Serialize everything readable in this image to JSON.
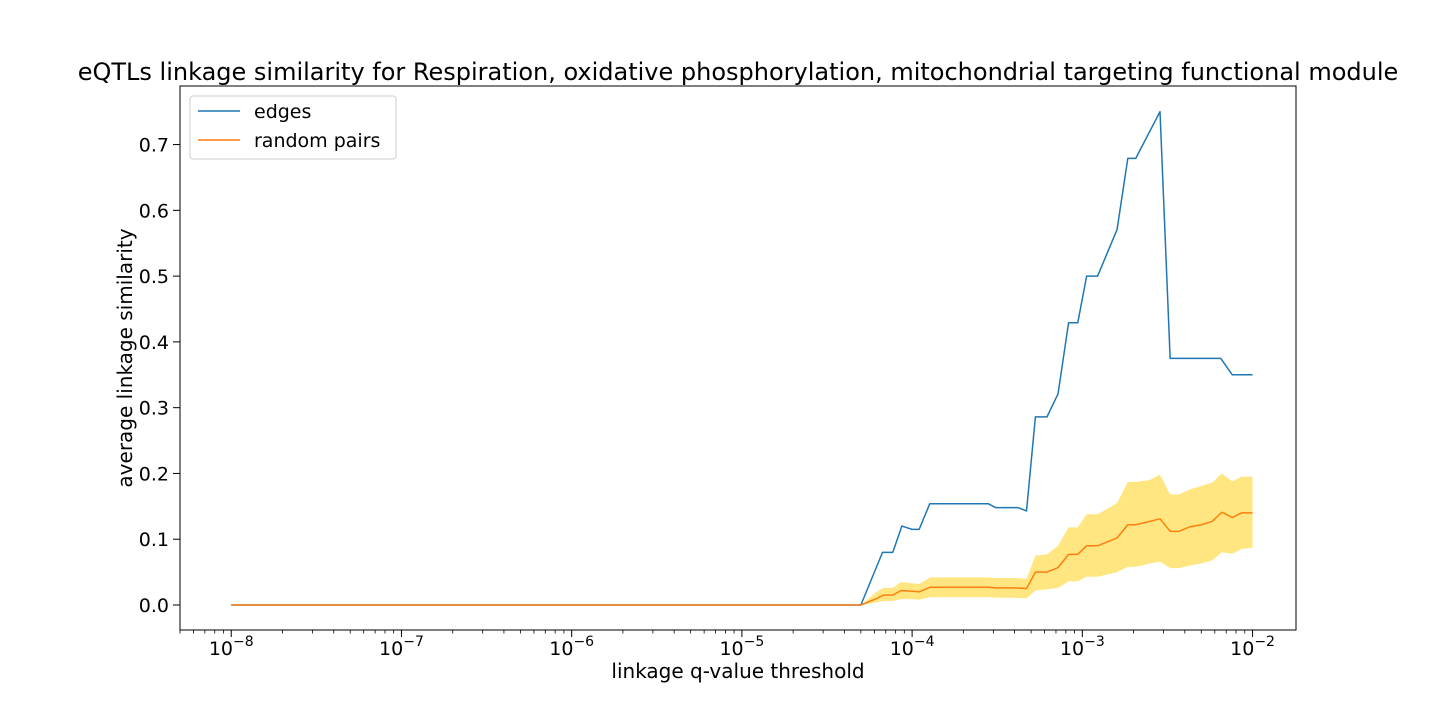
{
  "chart_data": {
    "type": "line",
    "title": "eQTLs linkage similarity for Respiration, oxidative phosphorylation, mitochondrial targeting functional module",
    "xlabel": "linkage q-value threshold",
    "ylabel": "average linkage similarity",
    "xscale": "log",
    "xlim": [
      5e-09,
      0.018
    ],
    "ylim": [
      -0.038,
      0.789
    ],
    "x_ticks": [
      {
        "base": "10",
        "exp": "−8"
      },
      {
        "base": "10",
        "exp": "−7"
      },
      {
        "base": "10",
        "exp": "−6"
      },
      {
        "base": "10",
        "exp": "−5"
      },
      {
        "base": "10",
        "exp": "−4"
      },
      {
        "base": "10",
        "exp": "−3"
      },
      {
        "base": "10",
        "exp": "−2"
      }
    ],
    "y_ticks": [
      "0.0",
      "0.1",
      "0.2",
      "0.3",
      "0.4",
      "0.5",
      "0.6",
      "0.7"
    ],
    "grid": false,
    "legend_position": "top-left",
    "colors": {
      "edges": "#1f77b4",
      "random_pairs": "#ff7f0e",
      "band": "#ffe680"
    },
    "series": [
      {
        "name": "edges",
        "points": [
          [
            1e-08,
            0.0
          ],
          [
            5e-05,
            0.0
          ],
          [
            6.7e-05,
            0.08
          ],
          [
            7.7e-05,
            0.08
          ],
          [
            8.7e-05,
            0.12
          ],
          [
            0.0001,
            0.115
          ],
          [
            0.00011,
            0.115
          ],
          [
            0.000127,
            0.154
          ],
          [
            0.00028,
            0.154
          ],
          [
            0.00031,
            0.148
          ],
          [
            0.00042,
            0.148
          ],
          [
            0.00047,
            0.143
          ],
          [
            0.00053,
            0.286
          ],
          [
            0.00062,
            0.286
          ],
          [
            0.00072,
            0.321
          ],
          [
            0.00083,
            0.429
          ],
          [
            0.00094,
            0.429
          ],
          [
            0.00106,
            0.5
          ],
          [
            0.00123,
            0.5
          ],
          [
            0.0016,
            0.571
          ],
          [
            0.00185,
            0.679
          ],
          [
            0.00206,
            0.679
          ],
          [
            0.00286,
            0.75
          ],
          [
            0.00328,
            0.375
          ],
          [
            0.0065,
            0.375
          ],
          [
            0.0076,
            0.35
          ],
          [
            0.01,
            0.35
          ]
        ]
      },
      {
        "name": "random pairs",
        "points": [
          [
            1e-08,
            0.0
          ],
          [
            5e-05,
            0.0
          ],
          [
            6.2e-05,
            0.01
          ],
          [
            6.8e-05,
            0.015
          ],
          [
            7.7e-05,
            0.015
          ],
          [
            8.6e-05,
            0.022
          ],
          [
            0.0001,
            0.021
          ],
          [
            0.00011,
            0.02
          ],
          [
            0.000128,
            0.027
          ],
          [
            0.000205,
            0.027
          ],
          [
            0.00028,
            0.027
          ],
          [
            0.00031,
            0.026
          ],
          [
            0.0004,
            0.026
          ],
          [
            0.00047,
            0.025
          ],
          [
            0.00053,
            0.05
          ],
          [
            0.00062,
            0.05
          ],
          [
            0.00072,
            0.057
          ],
          [
            0.00083,
            0.077
          ],
          [
            0.00094,
            0.077
          ],
          [
            0.00106,
            0.09
          ],
          [
            0.00123,
            0.09
          ],
          [
            0.0016,
            0.102
          ],
          [
            0.00185,
            0.122
          ],
          [
            0.00206,
            0.122
          ],
          [
            0.00248,
            0.127
          ],
          [
            0.00286,
            0.131
          ],
          [
            0.00328,
            0.112
          ],
          [
            0.0037,
            0.112
          ],
          [
            0.0043,
            0.119
          ],
          [
            0.005,
            0.122
          ],
          [
            0.0058,
            0.127
          ],
          [
            0.0066,
            0.141
          ],
          [
            0.0076,
            0.133
          ],
          [
            0.0086,
            0.14
          ],
          [
            0.01,
            0.14
          ]
        ]
      }
    ],
    "band": {
      "series": "random pairs",
      "points": [
        [
          1e-08,
          0.0,
          0.0
        ],
        [
          5e-05,
          0.0,
          0.0
        ],
        [
          6.2e-05,
          0.004,
          0.02
        ],
        [
          6.8e-05,
          0.006,
          0.026
        ],
        [
          7.7e-05,
          0.006,
          0.026
        ],
        [
          8.6e-05,
          0.009,
          0.035
        ],
        [
          0.0001,
          0.009,
          0.033
        ],
        [
          0.00011,
          0.008,
          0.032
        ],
        [
          0.000128,
          0.012,
          0.042
        ],
        [
          0.000205,
          0.012,
          0.042
        ],
        [
          0.00028,
          0.012,
          0.042
        ],
        [
          0.00031,
          0.011,
          0.041
        ],
        [
          0.0004,
          0.011,
          0.041
        ],
        [
          0.00047,
          0.01,
          0.04
        ],
        [
          0.00053,
          0.022,
          0.075
        ],
        [
          0.00062,
          0.024,
          0.077
        ],
        [
          0.00072,
          0.026,
          0.09
        ],
        [
          0.00083,
          0.036,
          0.118
        ],
        [
          0.00094,
          0.036,
          0.118
        ],
        [
          0.00106,
          0.043,
          0.138
        ],
        [
          0.00123,
          0.043,
          0.138
        ],
        [
          0.0016,
          0.05,
          0.155
        ],
        [
          0.00185,
          0.058,
          0.187
        ],
        [
          0.00206,
          0.058,
          0.187
        ],
        [
          0.00248,
          0.063,
          0.19
        ],
        [
          0.00286,
          0.066,
          0.198
        ],
        [
          0.00328,
          0.056,
          0.168
        ],
        [
          0.0037,
          0.056,
          0.168
        ],
        [
          0.0043,
          0.06,
          0.176
        ],
        [
          0.005,
          0.063,
          0.181
        ],
        [
          0.0058,
          0.068,
          0.186
        ],
        [
          0.0066,
          0.08,
          0.2
        ],
        [
          0.0076,
          0.078,
          0.188
        ],
        [
          0.0086,
          0.085,
          0.195
        ],
        [
          0.01,
          0.087,
          0.195
        ]
      ]
    }
  }
}
